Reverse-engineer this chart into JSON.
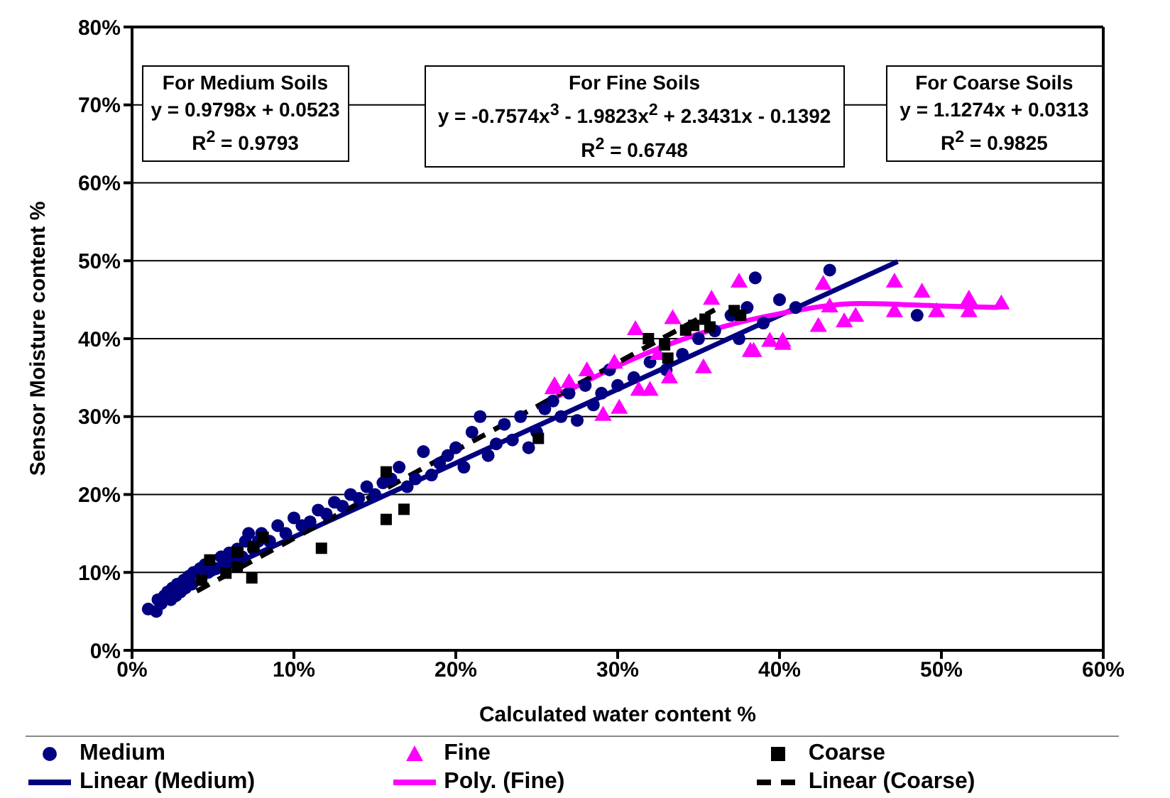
{
  "chart_data": {
    "type": "scatter",
    "xlabel": "Calculated water content %",
    "ylabel": "Sensor Moisture content %",
    "xlim": [
      0,
      0.6
    ],
    "ylim": [
      0,
      0.8
    ],
    "xticks": [
      {
        "value": 0,
        "label": "0%"
      },
      {
        "value": 0.1,
        "label": "10%"
      },
      {
        "value": 0.2,
        "label": "20%"
      },
      {
        "value": 0.3,
        "label": "30%"
      },
      {
        "value": 0.4,
        "label": "40%"
      },
      {
        "value": 0.5,
        "label": "50%"
      },
      {
        "value": 0.6,
        "label": "60%"
      }
    ],
    "yticks": [
      {
        "value": 0,
        "label": "0%"
      },
      {
        "value": 0.1,
        "label": "10%"
      },
      {
        "value": 0.2,
        "label": "20%"
      },
      {
        "value": 0.3,
        "label": "30%"
      },
      {
        "value": 0.4,
        "label": "40%"
      },
      {
        "value": 0.5,
        "label": "50%"
      },
      {
        "value": 0.6,
        "label": "60%"
      },
      {
        "value": 0.7,
        "label": "70%"
      },
      {
        "value": 0.8,
        "label": "80%"
      }
    ],
    "grid": "y",
    "legend": "bottom",
    "annotations": [
      "For Medium Soils\ny = 0.9798x + 0.0523\nR$^{2}$ = 0.9793",
      "For Fine Soils\ny = -0.7574x$^{3}$ - 1.9823x$^{2}$ + 2.3431x - 0.1392\nR$^{2}$ = 0.6748",
      "For Coarse Soils\ny = 1.1274x + 0.0313\nR$^{2}$ = 0.9825"
    ],
    "series": [
      {
        "name": "Medium",
        "marker": "circle",
        "color": "#000080",
        "x": [
          0.01,
          0.015,
          0.016,
          0.018,
          0.02,
          0.022,
          0.024,
          0.025,
          0.027,
          0.028,
          0.03,
          0.032,
          0.033,
          0.035,
          0.037,
          0.038,
          0.042,
          0.045,
          0.047,
          0.052,
          0.055,
          0.057,
          0.06,
          0.062,
          0.065,
          0.068,
          0.07,
          0.072,
          0.075,
          0.078,
          0.08,
          0.085,
          0.09,
          0.095,
          0.1,
          0.105,
          0.11,
          0.115,
          0.12,
          0.125,
          0.13,
          0.135,
          0.14,
          0.145,
          0.15,
          0.155,
          0.16,
          0.165,
          0.17,
          0.175,
          0.18,
          0.185,
          0.19,
          0.195,
          0.2,
          0.205,
          0.21,
          0.215,
          0.22,
          0.225,
          0.23,
          0.235,
          0.24,
          0.245,
          0.25,
          0.255,
          0.26,
          0.265,
          0.27,
          0.275,
          0.28,
          0.285,
          0.29,
          0.295,
          0.3,
          0.31,
          0.32,
          0.33,
          0.34,
          0.35,
          0.36,
          0.37,
          0.375,
          0.38,
          0.39,
          0.4,
          0.41,
          0.385,
          0.431,
          0.485
        ],
        "values": [
          0.053,
          0.05,
          0.065,
          0.06,
          0.07,
          0.075,
          0.065,
          0.08,
          0.07,
          0.085,
          0.075,
          0.09,
          0.08,
          0.095,
          0.085,
          0.1,
          0.105,
          0.11,
          0.1,
          0.105,
          0.12,
          0.11,
          0.125,
          0.115,
          0.13,
          0.12,
          0.14,
          0.15,
          0.13,
          0.14,
          0.15,
          0.14,
          0.16,
          0.15,
          0.17,
          0.16,
          0.165,
          0.18,
          0.175,
          0.19,
          0.185,
          0.2,
          0.195,
          0.21,
          0.2,
          0.215,
          0.22,
          0.235,
          0.21,
          0.22,
          0.255,
          0.225,
          0.24,
          0.25,
          0.26,
          0.235,
          0.28,
          0.3,
          0.25,
          0.265,
          0.29,
          0.27,
          0.3,
          0.26,
          0.28,
          0.31,
          0.32,
          0.3,
          0.33,
          0.295,
          0.34,
          0.315,
          0.33,
          0.36,
          0.34,
          0.35,
          0.37,
          0.36,
          0.38,
          0.4,
          0.41,
          0.43,
          0.4,
          0.44,
          0.42,
          0.45,
          0.44,
          0.478,
          0.488,
          0.43
        ]
      },
      {
        "name": "Fine",
        "marker": "triangle",
        "color": "#ff00ff",
        "x": [
          0.26,
          0.261,
          0.27,
          0.281,
          0.291,
          0.298,
          0.301,
          0.311,
          0.313,
          0.32,
          0.325,
          0.332,
          0.334,
          0.353,
          0.358,
          0.375,
          0.382,
          0.384,
          0.394,
          0.402,
          0.402,
          0.424,
          0.427,
          0.431,
          0.44,
          0.447,
          0.471,
          0.471,
          0.488,
          0.497,
          0.517,
          0.517,
          0.537
        ],
        "values": [
          0.335,
          0.339,
          0.343,
          0.358,
          0.301,
          0.368,
          0.31,
          0.411,
          0.333,
          0.333,
          0.379,
          0.349,
          0.425,
          0.362,
          0.45,
          0.472,
          0.383,
          0.383,
          0.396,
          0.396,
          0.392,
          0.415,
          0.469,
          0.44,
          0.421,
          0.428,
          0.472,
          0.434,
          0.459,
          0.434,
          0.45,
          0.434,
          0.444
        ]
      },
      {
        "name": "Coarse",
        "marker": "square",
        "color": "#000000",
        "x": [
          0.043,
          0.048,
          0.058,
          0.065,
          0.065,
          0.074,
          0.075,
          0.081,
          0.117,
          0.157,
          0.157,
          0.168,
          0.251,
          0.319,
          0.329,
          0.331,
          0.342,
          0.347,
          0.354,
          0.357,
          0.372,
          0.376
        ],
        "values": [
          0.09,
          0.116,
          0.099,
          0.107,
          0.126,
          0.093,
          0.133,
          0.145,
          0.131,
          0.229,
          0.168,
          0.181,
          0.272,
          0.4,
          0.392,
          0.375,
          0.411,
          0.417,
          0.425,
          0.415,
          0.436,
          0.43
        ]
      },
      {
        "name": "Linear (Medium)",
        "type": "line",
        "marker": "none",
        "line_style": "solid",
        "color": "#000080",
        "x": [
          0.015,
          0.473
        ],
        "values": [
          0.065,
          0.499
        ]
      },
      {
        "name": "Poly. (Fine)",
        "type": "line",
        "marker": "none",
        "line_style": "solid",
        "color": "#ff00ff",
        "x": [
          0.25,
          0.3,
          0.35,
          0.4,
          0.45,
          0.5,
          0.535
        ],
        "values": [
          0.311,
          0.365,
          0.406,
          0.432,
          0.445,
          0.442,
          0.44
        ]
      },
      {
        "name": "Linear (Coarse)",
        "type": "line",
        "marker": "none",
        "line_style": "dashed",
        "color": "#000000",
        "x": [
          0.04,
          0.36
        ],
        "values": [
          0.076,
          0.437
        ]
      }
    ]
  }
}
